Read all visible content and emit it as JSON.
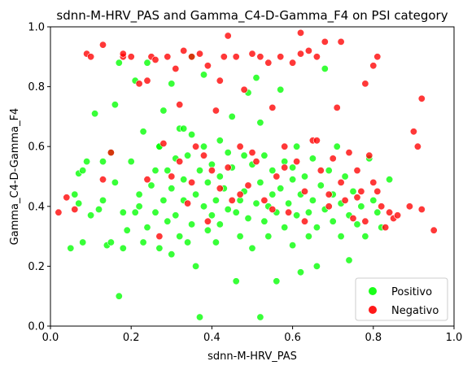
{
  "chart_data": {
    "type": "scatter",
    "title": "sdnn-M-HRV_PAS and Gamma_C4-D-Gamma_F4 on PSI category",
    "xlabel": "sdnn-M-HRV_PAS",
    "ylabel": "Gamma_C4-D-Gamma_F4",
    "xlim": [
      0.0,
      1.0
    ],
    "ylim": [
      0.0,
      1.0
    ],
    "xticks": [
      "0.0",
      "0.2",
      "0.4",
      "0.6",
      "0.8",
      "1.0"
    ],
    "yticks": [
      "0.0",
      "0.2",
      "0.4",
      "0.6",
      "0.8",
      "1.0"
    ],
    "grid": false,
    "legend_position": "bottom-right",
    "series": [
      {
        "name": "Positivo",
        "color": "#00ff00",
        "points": [
          [
            0.05,
            0.26
          ],
          [
            0.06,
            0.44
          ],
          [
            0.07,
            0.41
          ],
          [
            0.07,
            0.51
          ],
          [
            0.08,
            0.52
          ],
          [
            0.08,
            0.28
          ],
          [
            0.09,
            0.55
          ],
          [
            0.1,
            0.37
          ],
          [
            0.11,
            0.71
          ],
          [
            0.12,
            0.39
          ],
          [
            0.13,
            0.42
          ],
          [
            0.13,
            0.55
          ],
          [
            0.14,
            0.27
          ],
          [
            0.15,
            0.28
          ],
          [
            0.15,
            0.58
          ],
          [
            0.16,
            0.74
          ],
          [
            0.16,
            0.48
          ],
          [
            0.17,
            0.1
          ],
          [
            0.17,
            0.88
          ],
          [
            0.18,
            0.26
          ],
          [
            0.18,
            0.38
          ],
          [
            0.19,
            0.32
          ],
          [
            0.2,
            0.55
          ],
          [
            0.21,
            0.38
          ],
          [
            0.22,
            0.4
          ],
          [
            0.22,
            0.44
          ],
          [
            0.23,
            0.65
          ],
          [
            0.23,
            0.28
          ],
          [
            0.24,
            0.33
          ],
          [
            0.24,
            0.88
          ],
          [
            0.25,
            0.47
          ],
          [
            0.26,
            0.52
          ],
          [
            0.26,
            0.38
          ],
          [
            0.27,
            0.6
          ],
          [
            0.27,
            0.26
          ],
          [
            0.28,
            0.72
          ],
          [
            0.28,
            0.42
          ],
          [
            0.29,
            0.35
          ],
          [
            0.29,
            0.52
          ],
          [
            0.3,
            0.24
          ],
          [
            0.3,
            0.46
          ],
          [
            0.31,
            0.56
          ],
          [
            0.31,
            0.37
          ],
          [
            0.32,
            0.66
          ],
          [
            0.32,
            0.3
          ],
          [
            0.33,
            0.49
          ],
          [
            0.33,
            0.42
          ],
          [
            0.34,
            0.28
          ],
          [
            0.34,
            0.57
          ],
          [
            0.35,
            0.64
          ],
          [
            0.35,
            0.34
          ],
          [
            0.36,
            0.44
          ],
          [
            0.36,
            0.2
          ],
          [
            0.37,
            0.52
          ],
          [
            0.37,
            0.03
          ],
          [
            0.38,
            0.6
          ],
          [
            0.38,
            0.4
          ],
          [
            0.39,
            0.32
          ],
          [
            0.39,
            0.48
          ],
          [
            0.4,
            0.37
          ],
          [
            0.4,
            0.54
          ],
          [
            0.41,
            0.28
          ],
          [
            0.41,
            0.42
          ],
          [
            0.42,
            0.5
          ],
          [
            0.42,
            0.34
          ],
          [
            0.43,
            0.46
          ],
          [
            0.44,
            0.39
          ],
          [
            0.45,
            0.53
          ],
          [
            0.45,
            0.7
          ],
          [
            0.46,
            0.38
          ],
          [
            0.46,
            0.15
          ],
          [
            0.47,
            0.42
          ],
          [
            0.47,
            0.3
          ],
          [
            0.48,
            0.57
          ],
          [
            0.48,
            0.45
          ],
          [
            0.49,
            0.36
          ],
          [
            0.5,
            0.54
          ],
          [
            0.5,
            0.26
          ],
          [
            0.51,
            0.41
          ],
          [
            0.51,
            0.83
          ],
          [
            0.52,
            0.48
          ],
          [
            0.52,
            0.03
          ],
          [
            0.53,
            0.35
          ],
          [
            0.53,
            0.57
          ],
          [
            0.54,
            0.4
          ],
          [
            0.54,
            0.3
          ],
          [
            0.55,
            0.52
          ],
          [
            0.55,
            0.44
          ],
          [
            0.56,
            0.38
          ],
          [
            0.56,
            0.15
          ],
          [
            0.57,
            0.46
          ],
          [
            0.57,
            0.79
          ],
          [
            0.58,
            0.33
          ],
          [
            0.58,
            0.55
          ],
          [
            0.59,
            0.41
          ],
          [
            0.6,
            0.27
          ],
          [
            0.6,
            0.49
          ],
          [
            0.61,
            0.37
          ],
          [
            0.61,
            0.6
          ],
          [
            0.62,
            0.44
          ],
          [
            0.62,
            0.18
          ],
          [
            0.63,
            0.5
          ],
          [
            0.64,
            0.38
          ],
          [
            0.64,
            0.3
          ],
          [
            0.65,
            0.56
          ],
          [
            0.65,
            0.42
          ],
          [
            0.66,
            0.33
          ],
          [
            0.66,
            0.2
          ],
          [
            0.67,
            0.47
          ],
          [
            0.68,
            0.39
          ],
          [
            0.68,
            0.86
          ],
          [
            0.69,
            0.52
          ],
          [
            0.7,
            0.35
          ],
          [
            0.7,
            0.44
          ],
          [
            0.71,
            0.6
          ],
          [
            0.72,
            0.3
          ],
          [
            0.72,
            0.41
          ],
          [
            0.73,
            0.5
          ],
          [
            0.74,
            0.37
          ],
          [
            0.74,
            0.22
          ],
          [
            0.75,
            0.45
          ],
          [
            0.76,
            0.34
          ],
          [
            0.77,
            0.4
          ],
          [
            0.78,
            0.3
          ],
          [
            0.79,
            0.56
          ],
          [
            0.8,
            0.42
          ],
          [
            0.81,
            0.38
          ],
          [
            0.82,
            0.33
          ],
          [
            0.84,
            0.49
          ],
          [
            0.3,
            0.81
          ],
          [
            0.35,
            0.9
          ],
          [
            0.42,
            0.62
          ],
          [
            0.49,
            0.78
          ],
          [
            0.21,
            0.82
          ],
          [
            0.27,
            0.6
          ],
          [
            0.33,
            0.66
          ],
          [
            0.44,
            0.58
          ],
          [
            0.52,
            0.68
          ],
          [
            0.6,
            0.53
          ],
          [
            0.38,
            0.84
          ]
        ]
      },
      {
        "name": "Negativo",
        "color": "#ff0000",
        "points": [
          [
            0.02,
            0.38
          ],
          [
            0.04,
            0.43
          ],
          [
            0.06,
            0.39
          ],
          [
            0.09,
            0.91
          ],
          [
            0.1,
            0.9
          ],
          [
            0.13,
            0.49
          ],
          [
            0.13,
            0.94
          ],
          [
            0.15,
            0.58
          ],
          [
            0.18,
            0.9
          ],
          [
            0.18,
            0.91
          ],
          [
            0.2,
            0.9
          ],
          [
            0.22,
            0.81
          ],
          [
            0.24,
            0.49
          ],
          [
            0.24,
            0.82
          ],
          [
            0.25,
            0.9
          ],
          [
            0.26,
            0.89
          ],
          [
            0.28,
            0.61
          ],
          [
            0.29,
            0.9
          ],
          [
            0.3,
            0.5
          ],
          [
            0.31,
            0.86
          ],
          [
            0.32,
            0.55
          ],
          [
            0.33,
            0.92
          ],
          [
            0.34,
            0.41
          ],
          [
            0.35,
            0.9
          ],
          [
            0.35,
            0.48
          ],
          [
            0.36,
            0.6
          ],
          [
            0.37,
            0.91
          ],
          [
            0.38,
            0.57
          ],
          [
            0.39,
            0.87
          ],
          [
            0.4,
            0.52
          ],
          [
            0.41,
            0.72
          ],
          [
            0.42,
            0.46
          ],
          [
            0.43,
            0.9
          ],
          [
            0.44,
            0.97
          ],
          [
            0.44,
            0.53
          ],
          [
            0.45,
            0.42
          ],
          [
            0.46,
            0.9
          ],
          [
            0.47,
            0.6
          ],
          [
            0.48,
            0.79
          ],
          [
            0.49,
            0.47
          ],
          [
            0.5,
            0.91
          ],
          [
            0.51,
            0.55
          ],
          [
            0.52,
            0.9
          ],
          [
            0.53,
            0.42
          ],
          [
            0.54,
            0.88
          ],
          [
            0.55,
            0.73
          ],
          [
            0.56,
            0.5
          ],
          [
            0.57,
            0.9
          ],
          [
            0.58,
            0.6
          ],
          [
            0.59,
            0.38
          ],
          [
            0.6,
            0.88
          ],
          [
            0.61,
            0.55
          ],
          [
            0.62,
            0.91
          ],
          [
            0.62,
            0.98
          ],
          [
            0.63,
            0.45
          ],
          [
            0.64,
            0.92
          ],
          [
            0.65,
            0.62
          ],
          [
            0.66,
            0.9
          ],
          [
            0.67,
            0.52
          ],
          [
            0.68,
            0.95
          ],
          [
            0.69,
            0.4
          ],
          [
            0.7,
            0.56
          ],
          [
            0.71,
            0.73
          ],
          [
            0.72,
            0.95
          ],
          [
            0.72,
            0.48
          ],
          [
            0.73,
            0.42
          ],
          [
            0.74,
            0.58
          ],
          [
            0.75,
            0.36
          ],
          [
            0.76,
            0.52
          ],
          [
            0.77,
            0.45
          ],
          [
            0.78,
            0.81
          ],
          [
            0.78,
            0.35
          ],
          [
            0.79,
            0.57
          ],
          [
            0.8,
            0.87
          ],
          [
            0.81,
            0.9
          ],
          [
            0.81,
            0.45
          ],
          [
            0.82,
            0.4
          ],
          [
            0.83,
            0.33
          ],
          [
            0.84,
            0.38
          ],
          [
            0.85,
            0.36
          ],
          [
            0.86,
            0.37
          ],
          [
            0.89,
            0.4
          ],
          [
            0.9,
            0.65
          ],
          [
            0.91,
            0.6
          ],
          [
            0.92,
            0.76
          ],
          [
            0.92,
            0.39
          ],
          [
            0.95,
            0.32
          ],
          [
            0.27,
            0.3
          ],
          [
            0.39,
            0.35
          ],
          [
            0.47,
            0.44
          ],
          [
            0.55,
            0.39
          ],
          [
            0.63,
            0.35
          ],
          [
            0.69,
            0.44
          ],
          [
            0.76,
            0.43
          ],
          [
            0.58,
            0.53
          ],
          [
            0.5,
            0.58
          ],
          [
            0.66,
            0.62
          ],
          [
            0.8,
            0.48
          ],
          [
            0.32,
            0.74
          ],
          [
            0.42,
            0.82
          ]
        ]
      }
    ]
  }
}
